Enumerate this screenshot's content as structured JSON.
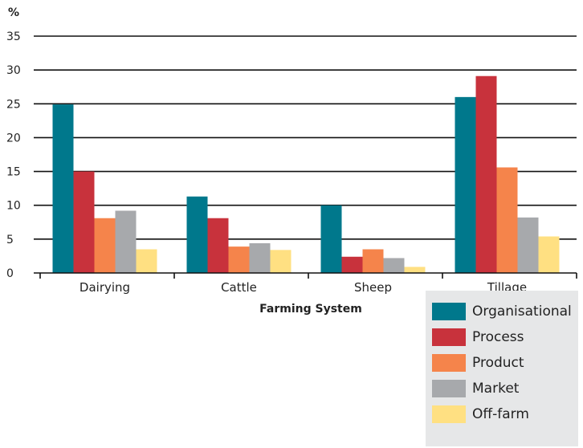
{
  "chart_data": {
    "type": "bar",
    "unit_label": "%",
    "xlabel": "Farming System",
    "ylabel": "",
    "ylim": [
      0,
      35
    ],
    "yticks": [
      0,
      5,
      10,
      15,
      20,
      25,
      30,
      35
    ],
    "grid": true,
    "legend_position": "bottom-right",
    "categories": [
      "Dairying",
      "Cattle",
      "Sheep",
      "Tillage"
    ],
    "series": [
      {
        "name": "Organisational",
        "color": "#00788c",
        "values": [
          24.9,
          11.3,
          10.0,
          26.0
        ]
      },
      {
        "name": "Process",
        "color": "#c8323c",
        "values": [
          15.0,
          8.1,
          2.4,
          29.1
        ]
      },
      {
        "name": "Product",
        "color": "#f5844b",
        "values": [
          8.1,
          3.9,
          3.5,
          15.6
        ]
      },
      {
        "name": "Market",
        "color": "#a7a9ac",
        "values": [
          9.2,
          4.4,
          2.2,
          8.2
        ]
      },
      {
        "name": "Off-farm",
        "color": "#ffe082",
        "values": [
          3.5,
          3.4,
          0.9,
          5.4
        ]
      }
    ]
  }
}
